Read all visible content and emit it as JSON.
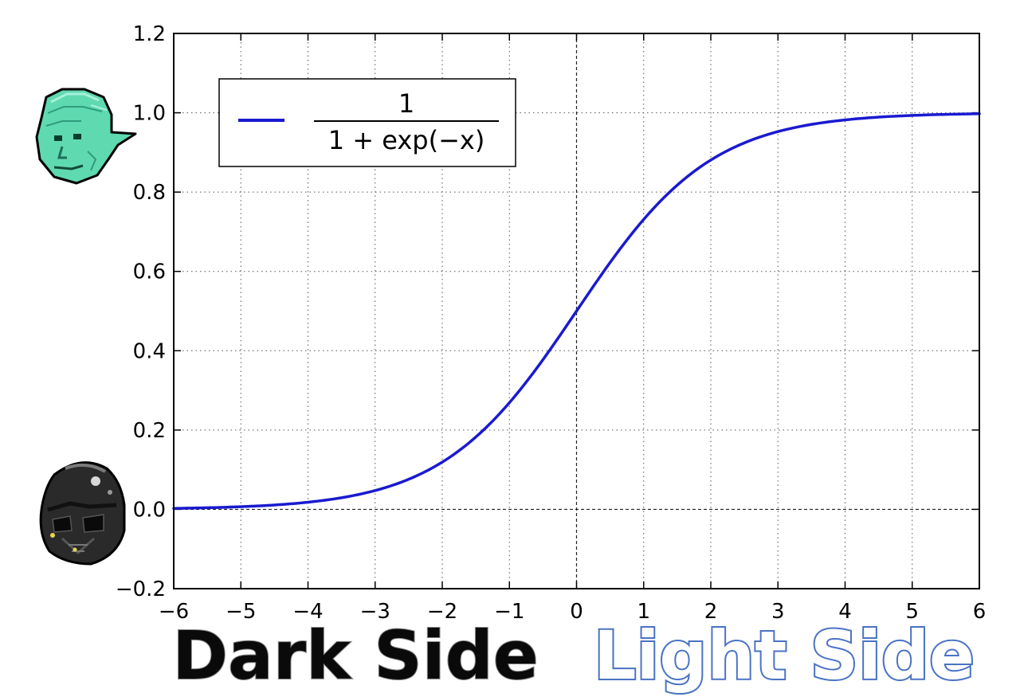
{
  "chart_data": {
    "type": "line",
    "title": "",
    "xlabel": "",
    "ylabel": "",
    "xlim": [
      -6,
      6
    ],
    "ylim": [
      -0.2,
      1.2
    ],
    "grid": true,
    "grid_style": "dotted",
    "zero_lines": true,
    "legend_position": "upper-left",
    "x_ticks": [
      -6,
      -5,
      -4,
      -3,
      -2,
      -1,
      0,
      1,
      2,
      3,
      4,
      5,
      6
    ],
    "x_tick_labels": [
      "−6",
      "−5",
      "−4",
      "−3",
      "−2",
      "−1",
      "0",
      "1",
      "2",
      "3",
      "4",
      "5",
      "6"
    ],
    "y_ticks": [
      -0.2,
      0.0,
      0.2,
      0.4,
      0.6,
      0.8,
      1.0,
      1.2
    ],
    "y_tick_labels": [
      "−0.2",
      "0.0",
      "0.2",
      "0.4",
      "0.6",
      "0.8",
      "1.0",
      "1.2"
    ],
    "series": [
      {
        "name": "1 / (1 + exp(−x))",
        "legend_numerator": "1",
        "legend_denominator": "1 + exp(−x)",
        "color": "#1a1ad0",
        "x": [
          -6,
          -5,
          -4,
          -3,
          -2,
          -1.5,
          -1,
          -0.5,
          0,
          0.5,
          1,
          1.5,
          2,
          3,
          4,
          5,
          6
        ],
        "y": [
          0.0025,
          0.0067,
          0.018,
          0.047,
          0.119,
          0.182,
          0.269,
          0.378,
          0.5,
          0.622,
          0.731,
          0.818,
          0.881,
          0.953,
          0.982,
          0.9933,
          0.9975
        ]
      }
    ]
  },
  "annotations": {
    "dark_label": "Dark Side",
    "light_label": "Light Side",
    "top_icon": "goblin-head-icon",
    "bottom_icon": "dark-helmet-icon"
  },
  "colors": {
    "curve": "#1a1ad0",
    "dark_text": "#0a0a0a",
    "light_text_fill": "#ffffff",
    "light_text_stroke": "#4a72c4"
  }
}
